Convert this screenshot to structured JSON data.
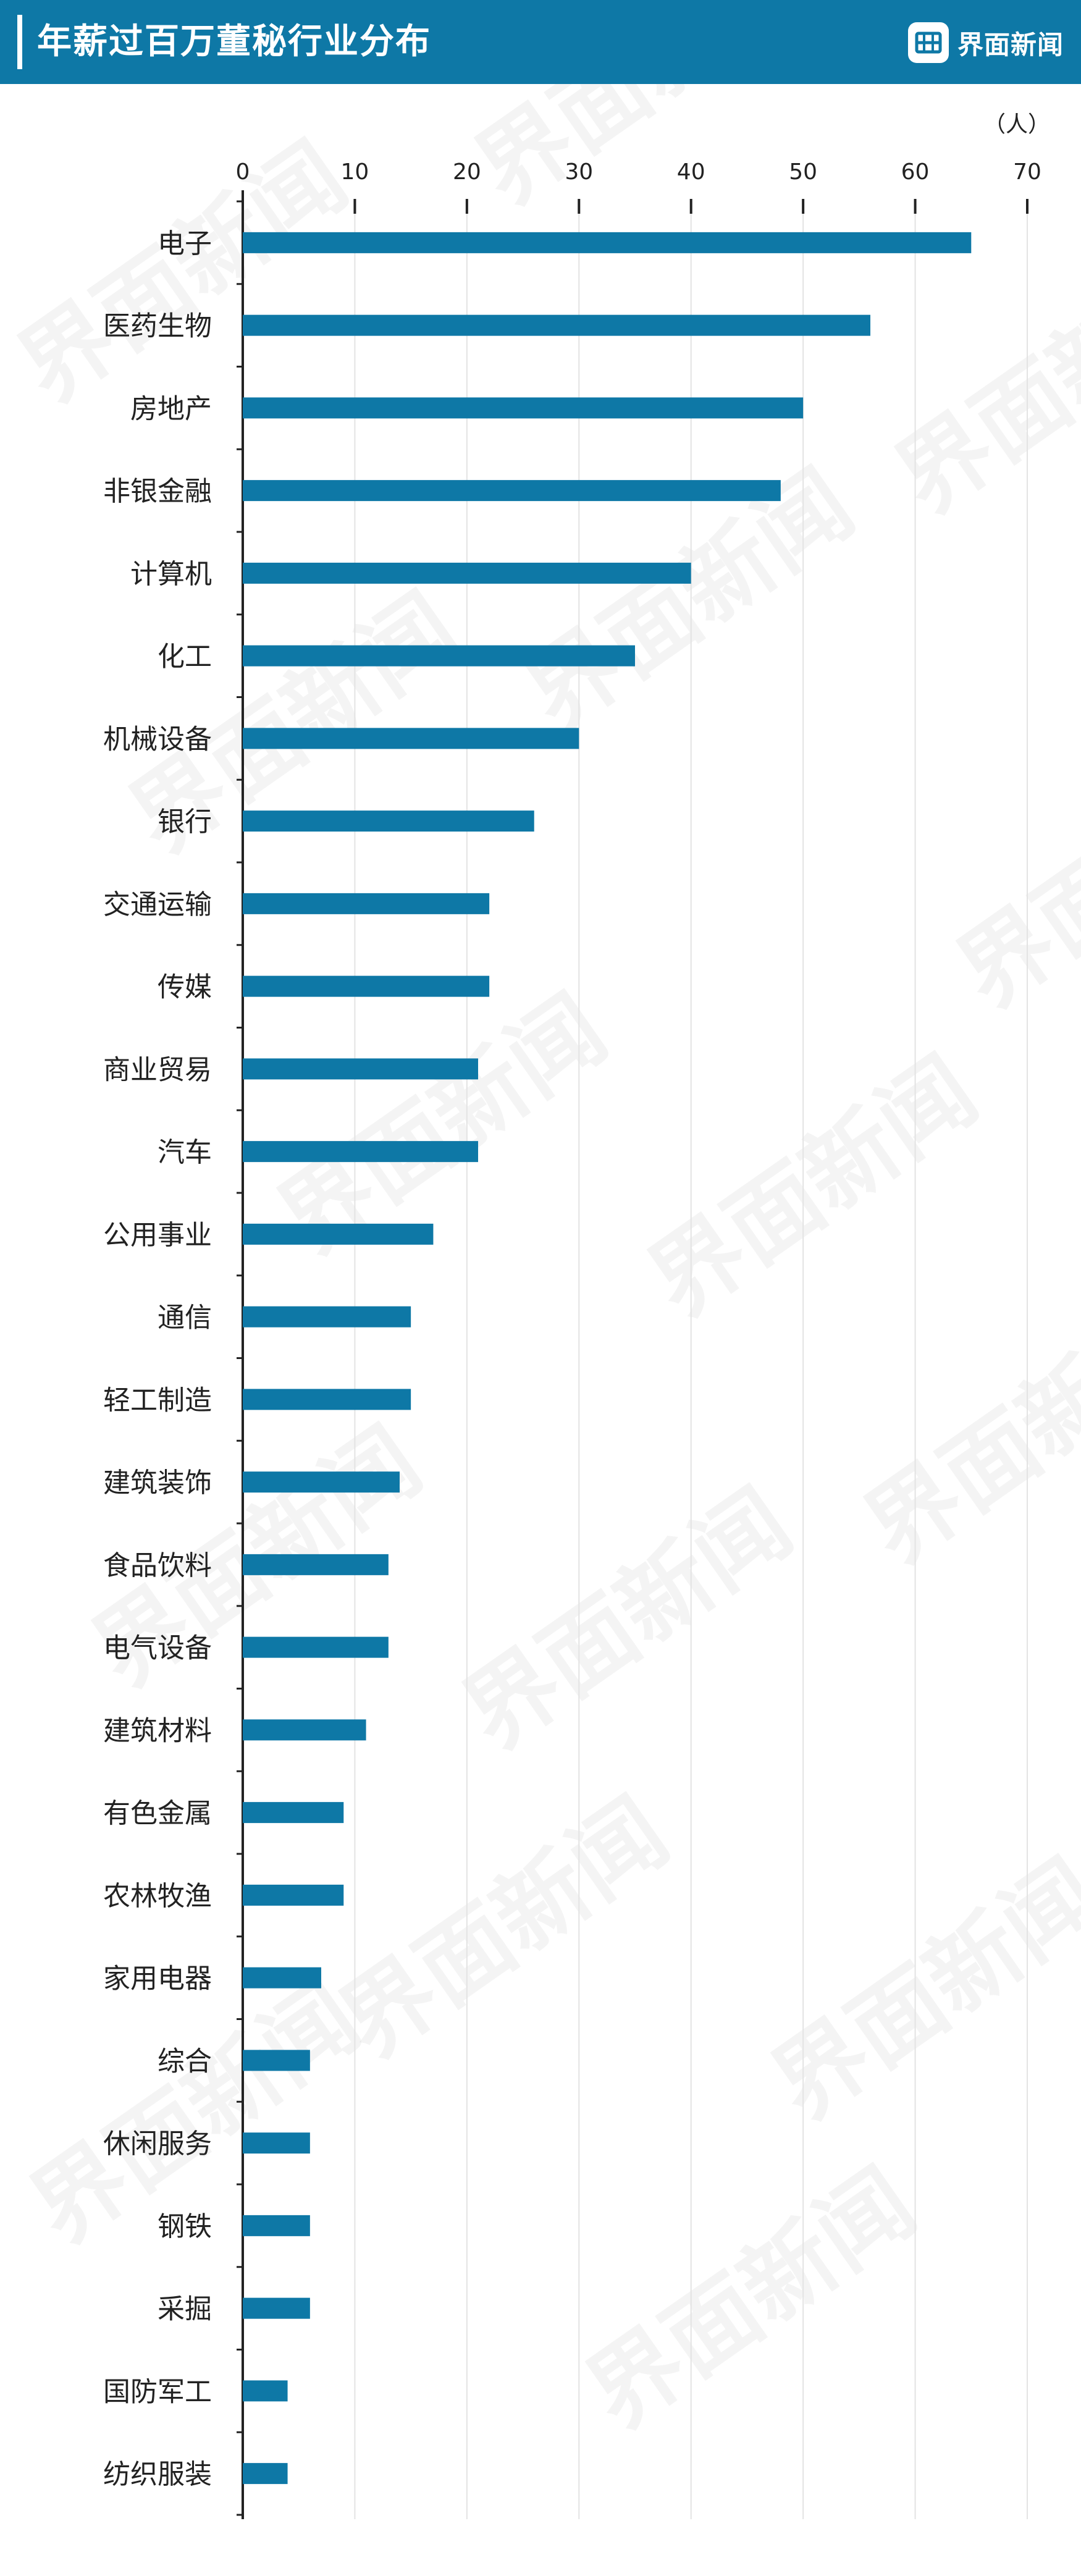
{
  "header": {
    "title": "年薪过百万董秘行业分布",
    "brand": "界面新闻"
  },
  "watermark": {
    "text": "界面新闻"
  },
  "colors": {
    "header_bg": "#0e78a6",
    "bar": "#0e78a6",
    "grid": "#e3e3e3",
    "axis": "#222222"
  },
  "chart_data": {
    "type": "bar",
    "orientation": "horizontal",
    "title": "年薪过百万董秘行业分布",
    "unit": "（人）",
    "xlim": [
      0,
      70
    ],
    "xticks": [
      0,
      10,
      20,
      30,
      40,
      50,
      60,
      70
    ],
    "grid": true,
    "categories": [
      "电子",
      "医药生物",
      "房地产",
      "非银金融",
      "计算机",
      "化工",
      "机械设备",
      "银行",
      "交通运输",
      "传媒",
      "商业贸易",
      "汽车",
      "公用事业",
      "通信",
      "轻工制造",
      "建筑装饰",
      "食品饮料",
      "电气设备",
      "建筑材料",
      "有色金属",
      "农林牧渔",
      "家用电器",
      "综合",
      "休闲服务",
      "钢铁",
      "采掘",
      "国防军工",
      "纺织服装"
    ],
    "values": [
      65,
      56,
      50,
      48,
      40,
      35,
      30,
      26,
      22,
      22,
      21,
      21,
      17,
      15,
      15,
      14,
      13,
      13,
      11,
      9,
      9,
      7,
      6,
      6,
      6,
      6,
      4,
      4
    ]
  }
}
